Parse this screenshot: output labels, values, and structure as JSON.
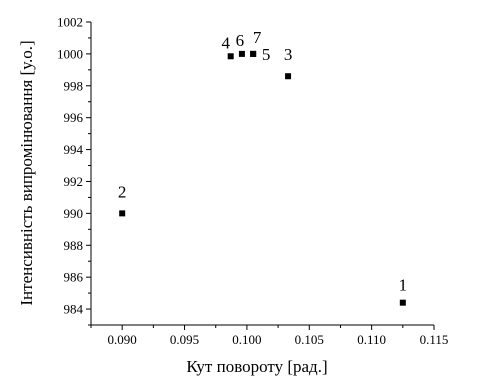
{
  "chart_data": {
    "type": "scatter",
    "xlabel": "Кут повороту [рад.]",
    "ylabel": "Інтенсивність випромінювання [у.о.]",
    "xlim": [
      0.0875,
      0.115
    ],
    "ylim": [
      983,
      1002
    ],
    "x_ticks": [
      "0.090",
      "0.095",
      "0.100",
      "0.105",
      "0.110",
      "0.115"
    ],
    "y_ticks": [
      "984",
      "986",
      "988",
      "990",
      "992",
      "994",
      "996",
      "998",
      "1000",
      "1002"
    ],
    "grid": false,
    "points": [
      {
        "label": "1",
        "x": 0.1125,
        "y": 984.4
      },
      {
        "label": "2",
        "x": 0.09,
        "y": 990.0
      },
      {
        "label": "3",
        "x": 0.1033,
        "y": 998.6
      },
      {
        "label": "4",
        "x": 0.0987,
        "y": 999.85
      },
      {
        "label": "5",
        "x": 0.1005,
        "y": 1000.0
      },
      {
        "label": "6",
        "x": 0.0996,
        "y": 1000.0
      },
      {
        "label": "7",
        "x": 0.1005,
        "y": 1000.0
      }
    ],
    "marker_color": "#000000"
  }
}
